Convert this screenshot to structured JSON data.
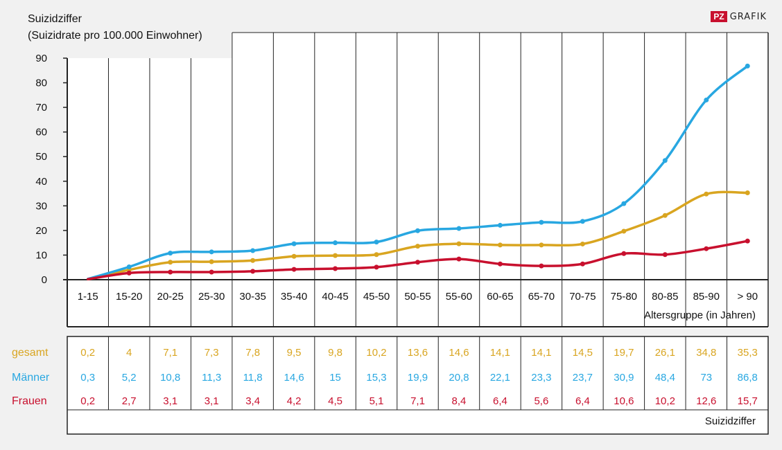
{
  "brand": {
    "pz": "PZ",
    "grafik": "GRAFIK"
  },
  "colors": {
    "gesamt": "#d9a520",
    "maenner": "#28a7e1",
    "frauen": "#c8102e"
  },
  "chart_data": {
    "type": "line",
    "title": "",
    "ylabel_line1": "Suizidziffer",
    "ylabel_line2": "(Suizidrate pro 100.000 Einwohner)",
    "xlabel": "Altersgruppe (in Jahren)",
    "table_label": "Suizidziffer",
    "ylim": [
      0,
      90
    ],
    "yticks": [
      0,
      10,
      20,
      30,
      40,
      50,
      60,
      70,
      80,
      90
    ],
    "categories": [
      "1-15",
      "15-20",
      "20-25",
      "25-30",
      "30-35",
      "35-40",
      "40-45",
      "45-50",
      "50-55",
      "55-60",
      "60-65",
      "65-70",
      "70-75",
      "75-80",
      "80-85",
      "85-90",
      "> 90"
    ],
    "series": [
      {
        "name": "gesamt",
        "color": "#d9a520",
        "values": [
          0.2,
          4,
          7.1,
          7.3,
          7.8,
          9.5,
          9.8,
          10.2,
          13.6,
          14.6,
          14.1,
          14.1,
          14.5,
          19.7,
          26.1,
          34.8,
          35.3
        ],
        "labels": [
          "0,2",
          "4",
          "7,1",
          "7,3",
          "7,8",
          "9,5",
          "9,8",
          "10,2",
          "13,6",
          "14,6",
          "14,1",
          "14,1",
          "14,5",
          "19,7",
          "26,1",
          "34,8",
          "35,3"
        ]
      },
      {
        "name": "Männer",
        "color": "#28a7e1",
        "values": [
          0.3,
          5.2,
          10.8,
          11.3,
          11.8,
          14.6,
          15,
          15.3,
          19.9,
          20.8,
          22.1,
          23.3,
          23.7,
          30.9,
          48.4,
          73,
          86.8
        ],
        "labels": [
          "0,3",
          "5,2",
          "10,8",
          "11,3",
          "11,8",
          "14,6",
          "15",
          "15,3",
          "19,9",
          "20,8",
          "22,1",
          "23,3",
          "23,7",
          "30,9",
          "48,4",
          "73",
          "86,8"
        ]
      },
      {
        "name": "Frauen",
        "color": "#c8102e",
        "values": [
          0.2,
          2.7,
          3.1,
          3.1,
          3.4,
          4.2,
          4.5,
          5.1,
          7.1,
          8.4,
          6.4,
          5.6,
          6.4,
          10.6,
          10.2,
          12.6,
          15.7
        ],
        "labels": [
          "0,2",
          "2,7",
          "3,1",
          "3,1",
          "3,4",
          "4,2",
          "4,5",
          "5,1",
          "7,1",
          "8,4",
          "6,4",
          "5,6",
          "6,4",
          "10,6",
          "10,2",
          "12,6",
          "15,7"
        ]
      }
    ]
  }
}
